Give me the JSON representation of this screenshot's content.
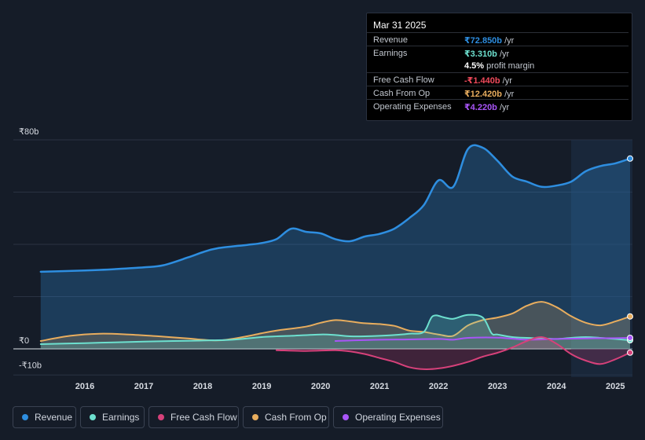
{
  "tooltip": {
    "date": "Mar 31 2025",
    "rows": [
      {
        "label": "Revenue",
        "value": "₹72.850b",
        "unit": " /yr",
        "color": "#2e8ee0"
      },
      {
        "label": "Earnings",
        "value": "₹3.310b",
        "unit": " /yr",
        "color": "#6de0cf"
      },
      {
        "label": "",
        "value": "4.5%",
        "unit": " profit margin",
        "color": "#ffffff"
      },
      {
        "label": "Free Cash Flow",
        "value": "-₹1.440b",
        "unit": " /yr",
        "color": "#ef4a5b"
      },
      {
        "label": "Cash From Op",
        "value": "₹12.420b",
        "unit": " /yr",
        "color": "#e8ad5e"
      },
      {
        "label": "Operating Expenses",
        "value": "₹4.220b",
        "unit": " /yr",
        "color": "#a855f7"
      }
    ]
  },
  "legend": [
    {
      "label": "Revenue",
      "color": "#2e8ee0"
    },
    {
      "label": "Earnings",
      "color": "#6de0cf"
    },
    {
      "label": "Free Cash Flow",
      "color": "#d6417a"
    },
    {
      "label": "Cash From Op",
      "color": "#e8ad5e"
    },
    {
      "label": "Operating Expenses",
      "color": "#a855f7"
    }
  ],
  "chart_data": {
    "type": "area",
    "ylim": [
      -10,
      80
    ],
    "y_tick_labels": [
      {
        "value": 80,
        "label": "₹80b"
      },
      {
        "value": 0,
        "label": "₹0"
      },
      {
        "value": -10,
        "label": "-₹10b"
      }
    ],
    "xlim": [
      2015.2,
      2025.25
    ],
    "x_ticks": [
      {
        "value": 2016,
        "label": "2016"
      },
      {
        "value": 2017,
        "label": "2017"
      },
      {
        "value": 2018,
        "label": "2018"
      },
      {
        "value": 2019,
        "label": "2019"
      },
      {
        "value": 2020,
        "label": "2020"
      },
      {
        "value": 2021,
        "label": "2021"
      },
      {
        "value": 2022,
        "label": "2022"
      },
      {
        "value": 2023,
        "label": "2023"
      },
      {
        "value": 2024,
        "label": "2024"
      },
      {
        "value": 2025,
        "label": "2025"
      }
    ],
    "forecast_start": 2024.25,
    "series": [
      {
        "name": "Revenue",
        "color": "#2e8ee0",
        "fill": true,
        "points": [
          [
            2015.25,
            29.5
          ],
          [
            2016.0,
            30.0
          ],
          [
            2016.5,
            30.5
          ],
          [
            2017.0,
            31.2
          ],
          [
            2017.33,
            32.0
          ],
          [
            2017.75,
            35.0
          ],
          [
            2018.0,
            37.0
          ],
          [
            2018.25,
            38.5
          ],
          [
            2018.75,
            39.8
          ],
          [
            2019.0,
            40.5
          ],
          [
            2019.25,
            42.0
          ],
          [
            2019.5,
            46.0
          ],
          [
            2019.75,
            44.8
          ],
          [
            2020.0,
            44.2
          ],
          [
            2020.25,
            42.0
          ],
          [
            2020.5,
            41.2
          ],
          [
            2020.75,
            43.0
          ],
          [
            2021.0,
            44.0
          ],
          [
            2021.25,
            46.0
          ],
          [
            2021.5,
            50.0
          ],
          [
            2021.75,
            55.0
          ],
          [
            2022.0,
            64.5
          ],
          [
            2022.25,
            62.0
          ],
          [
            2022.5,
            76.5
          ],
          [
            2022.75,
            77.0
          ],
          [
            2023.0,
            72.0
          ],
          [
            2023.25,
            66.0
          ],
          [
            2023.5,
            64.0
          ],
          [
            2023.75,
            62.0
          ],
          [
            2024.0,
            62.5
          ],
          [
            2024.25,
            64.0
          ],
          [
            2024.5,
            68.0
          ],
          [
            2024.75,
            70.0
          ],
          [
            2025.0,
            71.0
          ],
          [
            2025.25,
            72.85
          ]
        ]
      },
      {
        "name": "Cash From Op",
        "color": "#e8ad5e",
        "fill": true,
        "points": [
          [
            2015.25,
            3.0
          ],
          [
            2015.75,
            5.0
          ],
          [
            2016.25,
            5.8
          ],
          [
            2016.75,
            5.5
          ],
          [
            2017.25,
            4.8
          ],
          [
            2017.75,
            4.0
          ],
          [
            2018.0,
            3.5
          ],
          [
            2018.33,
            3.3
          ],
          [
            2018.75,
            4.8
          ],
          [
            2019.0,
            6.0
          ],
          [
            2019.25,
            7.0
          ],
          [
            2019.75,
            8.5
          ],
          [
            2020.0,
            10.0
          ],
          [
            2020.25,
            11.0
          ],
          [
            2020.5,
            10.5
          ],
          [
            2020.75,
            9.8
          ],
          [
            2021.0,
            9.5
          ],
          [
            2021.25,
            8.8
          ],
          [
            2021.5,
            7.0
          ],
          [
            2021.75,
            6.5
          ],
          [
            2022.0,
            5.5
          ],
          [
            2022.25,
            5.0
          ],
          [
            2022.5,
            9.0
          ],
          [
            2022.75,
            11.0
          ],
          [
            2023.0,
            12.0
          ],
          [
            2023.25,
            13.5
          ],
          [
            2023.5,
            16.5
          ],
          [
            2023.75,
            18.0
          ],
          [
            2024.0,
            16.0
          ],
          [
            2024.25,
            12.5
          ],
          [
            2024.5,
            10.0
          ],
          [
            2024.75,
            9.0
          ],
          [
            2025.0,
            10.5
          ],
          [
            2025.25,
            12.42
          ]
        ]
      },
      {
        "name": "Earnings",
        "color": "#6de0cf",
        "fill": true,
        "points": [
          [
            2015.25,
            1.8
          ],
          [
            2016.0,
            2.2
          ],
          [
            2016.5,
            2.5
          ],
          [
            2017.0,
            2.8
          ],
          [
            2017.5,
            3.0
          ],
          [
            2018.0,
            3.2
          ],
          [
            2018.5,
            3.5
          ],
          [
            2019.0,
            4.5
          ],
          [
            2019.5,
            5.0
          ],
          [
            2020.0,
            5.5
          ],
          [
            2020.25,
            5.3
          ],
          [
            2020.5,
            4.8
          ],
          [
            2020.75,
            4.8
          ],
          [
            2021.0,
            5.0
          ],
          [
            2021.25,
            5.3
          ],
          [
            2021.5,
            5.8
          ],
          [
            2021.75,
            6.5
          ],
          [
            2021.9,
            12.5
          ],
          [
            2022.1,
            12.0
          ],
          [
            2022.25,
            11.5
          ],
          [
            2022.5,
            13.0
          ],
          [
            2022.75,
            12.0
          ],
          [
            2022.9,
            6.0
          ],
          [
            2023.0,
            5.5
          ],
          [
            2023.25,
            4.5
          ],
          [
            2023.5,
            4.2
          ],
          [
            2023.75,
            4.0
          ],
          [
            2024.0,
            3.8
          ],
          [
            2024.25,
            4.2
          ],
          [
            2024.5,
            4.5
          ],
          [
            2024.75,
            4.2
          ],
          [
            2025.0,
            3.8
          ],
          [
            2025.25,
            3.31
          ]
        ]
      },
      {
        "name": "Operating Expenses",
        "color": "#a855f7",
        "fill": false,
        "points": [
          [
            2020.25,
            3.0
          ],
          [
            2020.5,
            3.2
          ],
          [
            2021.0,
            3.5
          ],
          [
            2021.5,
            3.6
          ],
          [
            2022.0,
            3.8
          ],
          [
            2022.25,
            3.5
          ],
          [
            2022.5,
            4.2
          ],
          [
            2023.0,
            4.3
          ],
          [
            2023.5,
            3.5
          ],
          [
            2024.0,
            3.8
          ],
          [
            2024.5,
            4.0
          ],
          [
            2025.0,
            4.1
          ],
          [
            2025.25,
            4.22
          ]
        ]
      },
      {
        "name": "Free Cash Flow",
        "color": "#d6417a",
        "fill": true,
        "points": [
          [
            2019.25,
            -0.5
          ],
          [
            2019.75,
            -0.8
          ],
          [
            2020.25,
            -0.5
          ],
          [
            2020.5,
            -1.0
          ],
          [
            2020.75,
            -2.0
          ],
          [
            2021.0,
            -3.5
          ],
          [
            2021.25,
            -5.0
          ],
          [
            2021.5,
            -7.0
          ],
          [
            2021.75,
            -7.8
          ],
          [
            2022.0,
            -7.5
          ],
          [
            2022.25,
            -6.5
          ],
          [
            2022.5,
            -5.0
          ],
          [
            2022.75,
            -3.0
          ],
          [
            2023.0,
            -1.5
          ],
          [
            2023.25,
            0.5
          ],
          [
            2023.5,
            3.0
          ],
          [
            2023.75,
            4.5
          ],
          [
            2024.0,
            2.0
          ],
          [
            2024.25,
            -2.0
          ],
          [
            2024.5,
            -4.5
          ],
          [
            2024.75,
            -5.8
          ],
          [
            2025.0,
            -4.0
          ],
          [
            2025.25,
            -1.44
          ]
        ]
      }
    ]
  }
}
